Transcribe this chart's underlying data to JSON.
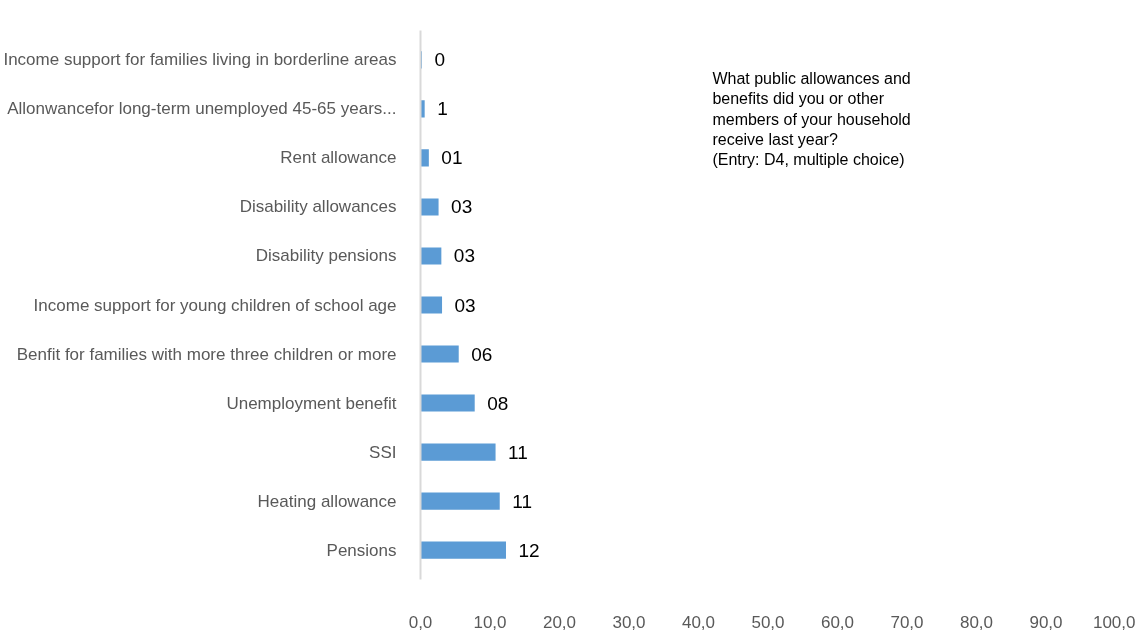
{
  "chart_data": {
    "type": "bar",
    "orientation": "horizontal",
    "categories": [
      "Income support for families living in borderline areas",
      "Allonwancefor long-term unemployed 45-65 years...",
      "Rent allowance",
      "Disability allowances",
      "Disability pensions",
      "Income support for young children of school age",
      "Benfit for families with more three children or more",
      "Unemployment benefit",
      "SSI",
      "Heating allowance",
      "Pensions"
    ],
    "values": [
      0.2,
      0.6,
      1.2,
      2.6,
      3.0,
      3.1,
      5.5,
      7.8,
      10.8,
      11.4,
      12.3
    ],
    "value_labels": [
      "0",
      "1",
      "01",
      "03",
      "03",
      "03",
      "06",
      "08",
      "11",
      "11",
      "12"
    ],
    "color": "#5b9bd5",
    "xlim": [
      0,
      100
    ],
    "xticks": [
      {
        "value": 0,
        "label": "0,0"
      },
      {
        "value": 10,
        "label": "10,0"
      },
      {
        "value": 20,
        "label": "20,0"
      },
      {
        "value": 30,
        "label": "30,0"
      },
      {
        "value": 40,
        "label": "40,0"
      },
      {
        "value": 50,
        "label": "50,0"
      },
      {
        "value": 60,
        "label": "60,0"
      },
      {
        "value": 70,
        "label": "70,0"
      },
      {
        "value": 80,
        "label": "80,0"
      },
      {
        "value": 90,
        "label": "90,0"
      },
      {
        "value": 100,
        "label": "100,0"
      }
    ],
    "annotations": [
      "What public allowances and\nbenefits did you or other\nmembers of your household\nreceive last year?\n(Entry: D4, multiple choice)"
    ],
    "grid": false
  }
}
